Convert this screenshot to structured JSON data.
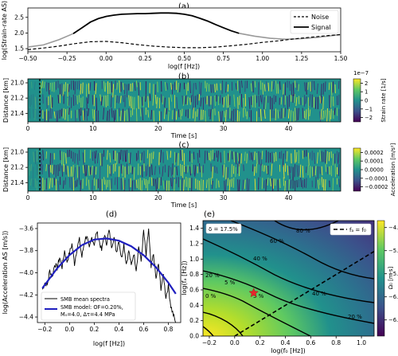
{
  "chart_data": [
    {
      "panel": "(a)",
      "type": "line",
      "xlabel": "log(f [Hz])",
      "ylabel": "log(Strain-rate AS)",
      "xlim": [
        -0.5,
        1.5
      ],
      "ylim": [
        1.4,
        2.8
      ],
      "xticks": [
        "−0.50",
        "−0.25",
        "0.00",
        "0.25",
        "0.50",
        "0.75",
        "1.00",
        "1.25",
        "1.50"
      ],
      "yticks": [
        "1.5",
        "2.0",
        "2.5"
      ],
      "legend": {
        "position": "top-right",
        "entries": [
          "Noise",
          "Signal"
        ]
      },
      "series": [
        {
          "name": "Noise",
          "style": "dashed",
          "x": [
            -0.5,
            -0.4,
            -0.3,
            -0.2,
            -0.1,
            0.0,
            0.1,
            0.2,
            0.3,
            0.4,
            0.5,
            0.6,
            0.7,
            0.8,
            0.9,
            1.0,
            1.1,
            1.2,
            1.3,
            1.4,
            1.5
          ],
          "y": [
            1.47,
            1.52,
            1.58,
            1.66,
            1.72,
            1.73,
            1.69,
            1.63,
            1.58,
            1.55,
            1.53,
            1.53,
            1.55,
            1.59,
            1.64,
            1.7,
            1.75,
            1.81,
            1.86,
            1.91,
            1.95
          ]
        },
        {
          "name": "Signal",
          "style": "solid",
          "x": [
            -0.21,
            -0.15,
            -0.1,
            -0.05,
            0.0,
            0.05,
            0.1,
            0.15,
            0.2,
            0.25,
            0.3,
            0.35,
            0.4,
            0.45,
            0.5,
            0.55,
            0.6,
            0.65,
            0.7,
            0.75,
            0.8,
            0.85
          ],
          "y": [
            1.98,
            2.18,
            2.35,
            2.46,
            2.53,
            2.57,
            2.6,
            2.61,
            2.62,
            2.62,
            2.63,
            2.64,
            2.64,
            2.63,
            2.6,
            2.55,
            2.47,
            2.38,
            2.27,
            2.17,
            2.07,
            1.99
          ]
        },
        {
          "name": "Signal (outside band)",
          "style": "solid-gray",
          "x": [
            -0.5,
            -0.4,
            -0.3,
            -0.21,
            0.85,
            0.95,
            1.05,
            1.15,
            1.25,
            1.35,
            1.45,
            1.5
          ],
          "y": [
            1.55,
            1.62,
            1.79,
            1.98,
            1.99,
            1.9,
            1.83,
            1.8,
            1.82,
            1.86,
            1.92,
            1.95
          ]
        }
      ]
    },
    {
      "panel": "(b)",
      "type": "heatmap",
      "xlabel": "Time [s]",
      "ylabel": "Distance [km]",
      "xlim": [
        0,
        48
      ],
      "ylim": [
        21.0,
        21.48
      ],
      "xticks": [
        "0",
        "10",
        "20",
        "30",
        "40"
      ],
      "yticks": [
        "21.0",
        "21.2",
        "21.4"
      ],
      "colorbar": {
        "label": "Strain rate [1/s]",
        "scale": "1e−7",
        "ticks": [
          "2",
          "1",
          "0",
          "−1",
          "−2"
        ],
        "range": [
          -2,
          2
        ]
      },
      "colors": {
        "low": "#440154",
        "mid": "#21918c",
        "high": "#fde725"
      },
      "onset_marker_s": 1.8
    },
    {
      "panel": "(c)",
      "type": "heatmap",
      "xlabel": "Time [s]",
      "ylabel": "Distance [km]",
      "xlim": [
        0,
        48
      ],
      "ylim": [
        21.0,
        21.48
      ],
      "xticks": [
        "0",
        "10",
        "20",
        "30",
        "40"
      ],
      "yticks": [
        "21.0",
        "21.2",
        "21.4"
      ],
      "colorbar": {
        "label": "Acceleration [m/s²]",
        "ticks": [
          "0.0002",
          "0.0001",
          "0.0000",
          "−0.0001",
          "−0.0002"
        ],
        "range": [
          -0.0002,
          0.0002
        ]
      },
      "onset_marker_s": 1.8
    },
    {
      "panel": "(d)",
      "type": "line",
      "xlabel": "log(f [Hz])",
      "ylabel": "log(Acceleration AS [m/s])",
      "xlim": [
        -0.26,
        0.9
      ],
      "ylim": [
        -4.45,
        -3.55
      ],
      "xticks": [
        "−0.2",
        "0.0",
        "0.2",
        "0.4",
        "0.6",
        "0.8"
      ],
      "yticks": [
        "−3.6",
        "−3.8",
        "−4.0",
        "−4.2",
        "−4.4"
      ],
      "legend": {
        "position": "bottom-left",
        "entries": [
          "SMB mean spectra",
          "SMB model: OF=0.20%,",
          "M₀=4.0, Δτ=4.4 MPa"
        ]
      },
      "series": [
        {
          "name": "SMB mean spectra",
          "color": "#000000",
          "x": [
            -0.22,
            -0.2,
            -0.18,
            -0.16,
            -0.14,
            -0.12,
            -0.1,
            -0.08,
            -0.06,
            -0.04,
            -0.02,
            0.0,
            0.02,
            0.04,
            0.06,
            0.08,
            0.1,
            0.12,
            0.14,
            0.16,
            0.18,
            0.2,
            0.22,
            0.24,
            0.26,
            0.28,
            0.3,
            0.32,
            0.34,
            0.36,
            0.38,
            0.4,
            0.42,
            0.44,
            0.46,
            0.48,
            0.5,
            0.52,
            0.54,
            0.56,
            0.58,
            0.6,
            0.62,
            0.64,
            0.66,
            0.68,
            0.7,
            0.72,
            0.74,
            0.76,
            0.78,
            0.8,
            0.82,
            0.84,
            0.86
          ],
          "y": [
            -4.15,
            -4.09,
            -4.11,
            -3.98,
            -4.04,
            -3.92,
            -3.96,
            -3.86,
            -3.95,
            -3.8,
            -3.9,
            -3.82,
            -3.74,
            -3.92,
            -3.78,
            -3.7,
            -3.86,
            -3.72,
            -3.66,
            -3.79,
            -3.68,
            -3.74,
            -3.63,
            -3.71,
            -3.8,
            -3.66,
            -3.73,
            -3.62,
            -3.76,
            -3.68,
            -3.81,
            -3.7,
            -3.87,
            -3.74,
            -3.92,
            -3.8,
            -3.94,
            -3.82,
            -3.97,
            -3.76,
            -3.9,
            -3.62,
            -3.85,
            -3.6,
            -3.96,
            -3.83,
            -4.06,
            -3.92,
            -4.14,
            -4.02,
            -4.22,
            -4.12,
            -4.3,
            -4.38,
            -4.45
          ]
        },
        {
          "name": "SMB model",
          "color": "#1f1fbf",
          "x": [
            -0.22,
            -0.1,
            0.0,
            0.1,
            0.2,
            0.3,
            0.4,
            0.5,
            0.6,
            0.7,
            0.8,
            0.86
          ],
          "y": [
            -4.14,
            -3.96,
            -3.84,
            -3.75,
            -3.7,
            -3.69,
            -3.71,
            -3.76,
            -3.84,
            -3.95,
            -4.09,
            -4.19
          ]
        }
      ]
    },
    {
      "panel": "(e)",
      "type": "heatmap",
      "xlabel": "log(f₀ [Hz])",
      "ylabel": "log(fₐ [Hz])",
      "xlim": [
        -0.25,
        1.1
      ],
      "ylim": [
        0.0,
        1.5
      ],
      "xticks": [
        "−0.2",
        "0.0",
        "0.2",
        "0.4",
        "0.6",
        "0.8",
        "1.0"
      ],
      "yticks": [
        "0.0",
        "0.2",
        "0.4",
        "0.6",
        "0.8",
        "1.0",
        "1.2",
        "1.4"
      ],
      "colorbar": {
        "label": "Ω₀ [m·s]",
        "ticks": [
          "−4.5",
          "−5.0",
          "−5.5",
          "−6.0",
          "−6.5"
        ],
        "range": [
          -6.85,
          -4.35
        ]
      },
      "annotation": "δ = 17.5%",
      "legend": {
        "position": "top-right",
        "entries": [
          "fₐ = f₀"
        ]
      },
      "contour_labels": [
        "80 %",
        "60 %",
        "40 %",
        "40 %",
        "20 %",
        "5 %",
        "5 %",
        "0 %",
        "20 %"
      ],
      "best_fit": {
        "x": 0.15,
        "y": 0.56
      },
      "colors": {
        "marker": "#e8262b"
      }
    }
  ]
}
